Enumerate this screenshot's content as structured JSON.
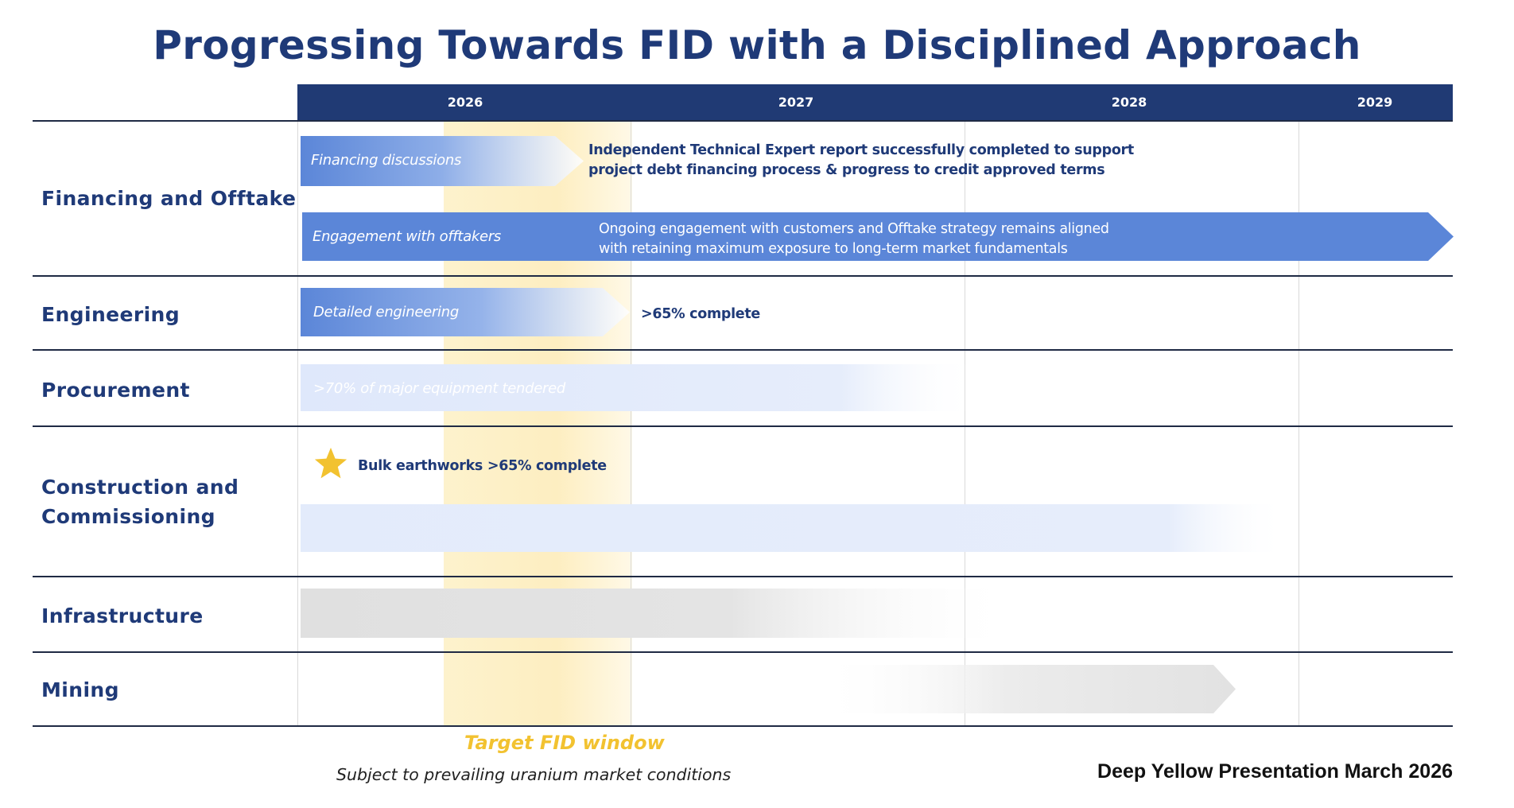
{
  "title": "Progressing Towards FID with a Disciplined Approach",
  "years": [
    "2026",
    "2027",
    "2028",
    "2029"
  ],
  "rows": {
    "financing": {
      "label_lines": [
        "Financing and Offtake"
      ],
      "bars": [
        {
          "text": "Financing discussions",
          "note": [
            "Independent Technical Expert report successfully completed to support",
            "project debt financing process & progress to credit approved terms"
          ]
        },
        {
          "text": "Engagement with offtakers",
          "note": [
            "Ongoing engagement with customers and Offtake strategy remains aligned",
            "with retaining maximum exposure to long-term market fundamentals"
          ]
        }
      ]
    },
    "engineering": {
      "label_lines": [
        "Engineering"
      ],
      "bars": [
        {
          "text": "Detailed engineering",
          "note": [
            ">65% complete"
          ]
        }
      ]
    },
    "procurement": {
      "label_lines": [
        "Procurement"
      ],
      "bars": [
        {
          "text": ">70% of major equipment tendered"
        }
      ]
    },
    "construction": {
      "label_lines": [
        "Construction and",
        "Commissioning"
      ],
      "milestone": {
        "icon": "star-icon",
        "text": "Bulk earthworks >65% complete"
      }
    },
    "infrastructure": {
      "label_lines": [
        "Infrastructure"
      ]
    },
    "mining": {
      "label_lines": [
        "Mining"
      ]
    }
  },
  "fid_window": {
    "label": "Target FID window",
    "subtitle": "Subject to prevailing uranium market  conditions"
  },
  "footer": "Deep Yellow Presentation March 2026",
  "colors": {
    "header": "#203a74",
    "title": "#1f3a78",
    "bar_blue": "#5b86d8",
    "bar_light_blue": "#dfe8fb",
    "bar_grey": "#e0e0e0",
    "fid_window": "#fdeebd",
    "star": "#f2c230"
  }
}
